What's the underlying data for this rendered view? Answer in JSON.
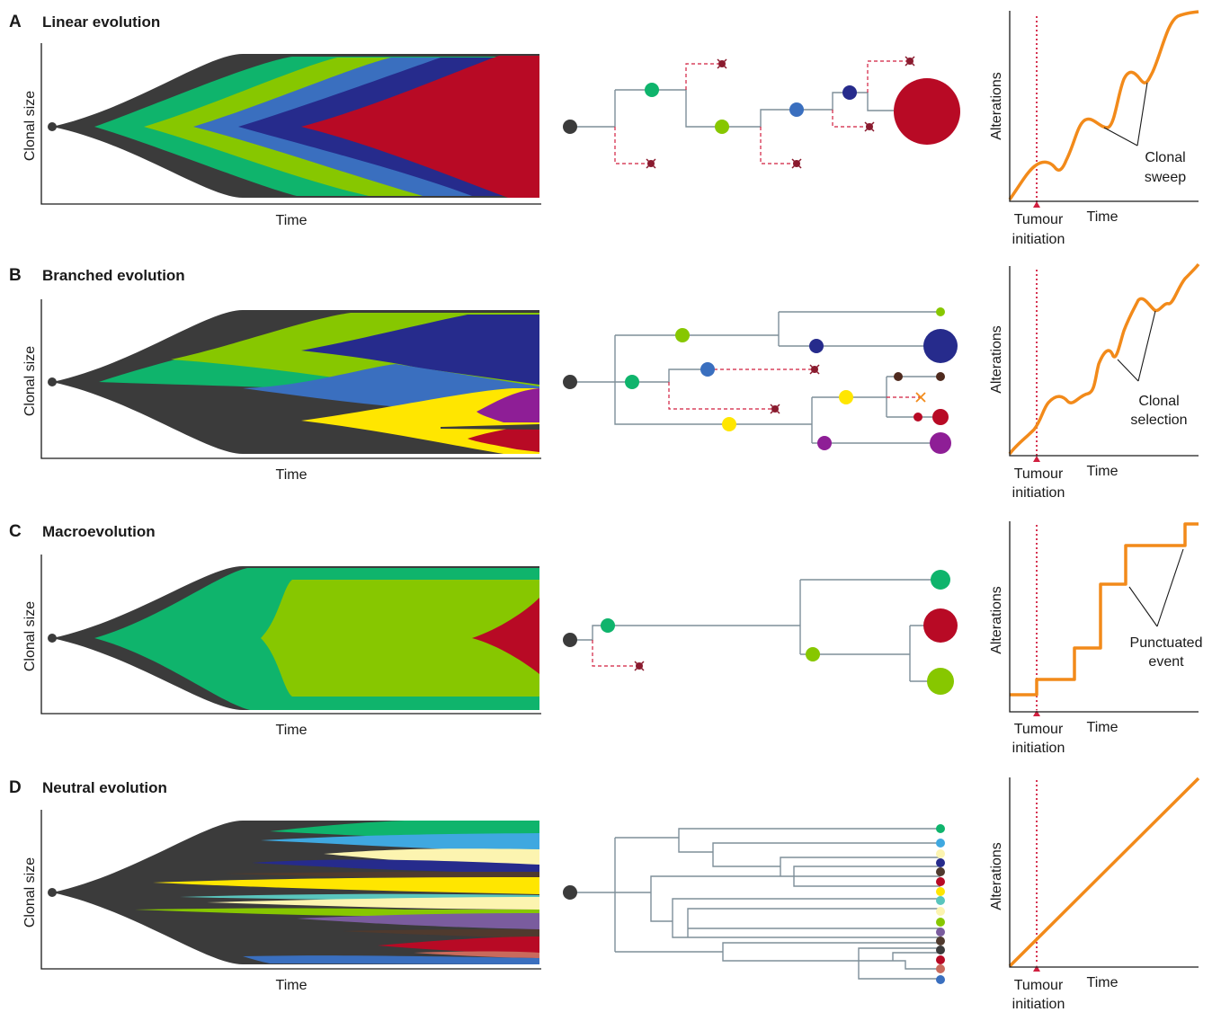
{
  "panels": [
    {
      "letter": "A",
      "title": "Linear evolution",
      "callout": [
        "Clonal",
        "sweep"
      ]
    },
    {
      "letter": "B",
      "title": "Branched evolution",
      "callout": [
        "Clonal",
        "selection"
      ]
    },
    {
      "letter": "C",
      "title": "Macroevolution",
      "callout": [
        "Punctuated",
        "event"
      ]
    },
    {
      "letter": "D",
      "title": "Neutral evolution",
      "callout": []
    }
  ],
  "labels": {
    "clonal_size": "Clonal size",
    "time": "Time",
    "alterations": "Alterations",
    "tumour_initiation": [
      "Tumour",
      "initiation"
    ]
  },
  "colors": {
    "founder": "#3b3b3b",
    "green": "#0fb46c",
    "lime": "#87c700",
    "mid_blue": "#3a6fbf",
    "navy": "#262b8c",
    "red": "#b80a25",
    "yellow": "#ffe600",
    "purple": "#8e1e96",
    "pale_yellow": "#fcf4b0",
    "light_blue": "#3fa8e0",
    "teal": "#59c5bd",
    "lavender": "#7a5c9e",
    "brown": "#4f3a2e",
    "salmon": "#c96a5c",
    "orange_curve": "#f28a1a",
    "dashed_red": "#d11f3f"
  }
}
